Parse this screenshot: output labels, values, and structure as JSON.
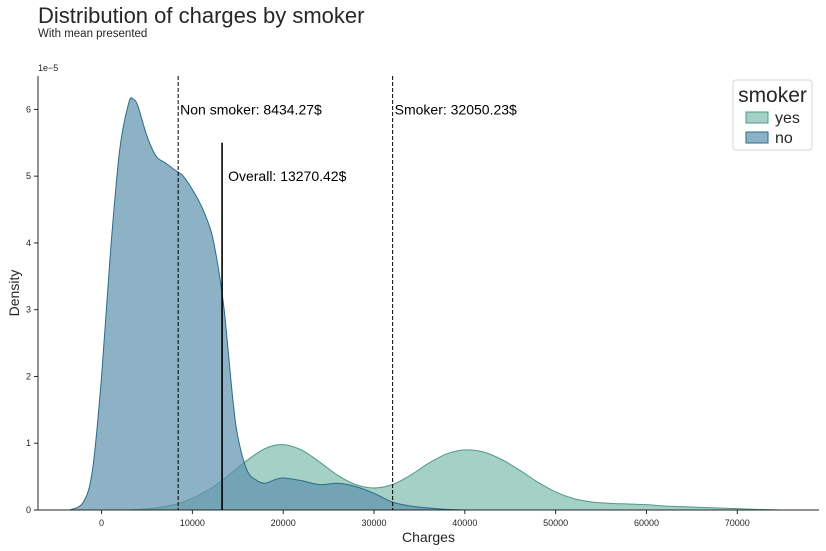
{
  "chart_data": {
    "type": "area",
    "title": "Distribution of charges by smoker",
    "subtitle": "With mean presented",
    "xlabel": "Charges",
    "ylabel": "Density",
    "y_scale_label": "1e−5",
    "xlim": [
      -7000,
      79000
    ],
    "ylim": [
      0,
      6.5
    ],
    "x_ticks": [
      0,
      10000,
      20000,
      30000,
      40000,
      50000,
      60000,
      70000
    ],
    "y_ticks": [
      0,
      1,
      2,
      3,
      4,
      5,
      6
    ],
    "grid": false,
    "legend": {
      "title": "smoker",
      "placement": "top-right",
      "entries": [
        {
          "label": "yes",
          "color": "#7fbcac"
        },
        {
          "label": "no",
          "color": "#5d92ad"
        }
      ]
    },
    "series": [
      {
        "name": "yes",
        "fill_color": "#7fbcac",
        "line_color": "#4f9a88",
        "x": [
          3000,
          6000,
          9000,
          12000,
          14000,
          16000,
          18000,
          20000,
          22000,
          24000,
          26000,
          28000,
          30000,
          32000,
          34000,
          36000,
          38000,
          40000,
          42000,
          44000,
          46000,
          48000,
          50000,
          52000,
          54000,
          56000,
          58000,
          60000,
          62000,
          64000,
          66000,
          68000,
          70000,
          72000,
          75000
        ],
        "y": [
          0.0,
          0.03,
          0.12,
          0.32,
          0.52,
          0.74,
          0.92,
          0.98,
          0.9,
          0.72,
          0.52,
          0.38,
          0.33,
          0.38,
          0.52,
          0.7,
          0.84,
          0.9,
          0.87,
          0.76,
          0.6,
          0.42,
          0.27,
          0.17,
          0.12,
          0.1,
          0.09,
          0.08,
          0.06,
          0.05,
          0.04,
          0.03,
          0.02,
          0.01,
          0.0
        ]
      },
      {
        "name": "no",
        "fill_color": "#5d92ad",
        "line_color": "#2b6b87",
        "x": [
          -3500,
          -2000,
          -1000,
          0,
          1000,
          2000,
          3000,
          3500,
          4000,
          5000,
          6000,
          7000,
          8000,
          9000,
          10000,
          11000,
          12000,
          12500,
          13000,
          13500,
          14000,
          14500,
          15000,
          16000,
          17000,
          18000,
          19000,
          20000,
          22000,
          24000,
          26000,
          28000,
          30000,
          32000,
          34000,
          36000,
          38000,
          40000
        ],
        "y": [
          0.0,
          0.12,
          0.6,
          2.0,
          3.9,
          5.4,
          6.1,
          6.15,
          6.05,
          5.6,
          5.3,
          5.2,
          5.1,
          5.0,
          4.8,
          4.55,
          4.2,
          3.9,
          3.5,
          3.0,
          2.3,
          1.6,
          1.1,
          0.6,
          0.45,
          0.4,
          0.45,
          0.48,
          0.44,
          0.38,
          0.4,
          0.35,
          0.25,
          0.12,
          0.06,
          0.03,
          0.01,
          0.0
        ]
      }
    ],
    "reference_lines": [
      {
        "name": "non-smoker-mean",
        "x": 8434.27,
        "style": "dashed",
        "y_max": 6.5,
        "label": "Non smoker: 8434.27$",
        "label_y": 6.0
      },
      {
        "name": "smoker-mean",
        "x": 32050.23,
        "style": "dashed",
        "y_max": 6.5,
        "label": "Smoker: 32050.23$",
        "label_y": 6.0
      },
      {
        "name": "overall-mean",
        "x": 13270.42,
        "style": "solid",
        "y_max": 5.5,
        "label": "Overall: 13270.42$",
        "label_y": 5.0
      }
    ]
  }
}
